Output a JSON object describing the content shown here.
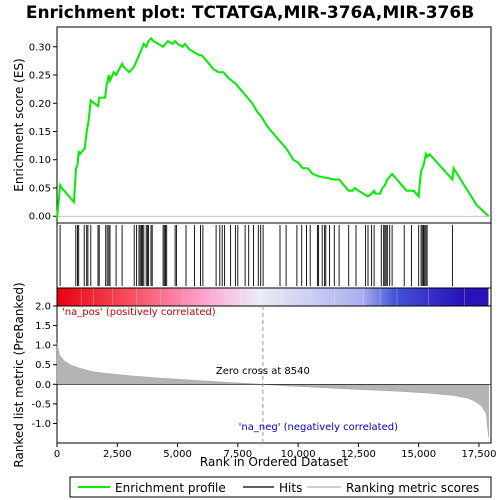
{
  "chart_data": {
    "type": "line",
    "title": "Enrichment plot: TCTATGA,MIR-376A,MIR-376B",
    "xlabel": "Rank in Ordered Dataset",
    "xlim": [
      0,
      18000
    ],
    "x_ticks": [
      "0",
      "2,500",
      "5,000",
      "7,500",
      "10,000",
      "12,500",
      "15,000",
      "17,500"
    ],
    "x_tick_values": [
      0,
      2500,
      5000,
      7500,
      10000,
      12500,
      15000,
      17500
    ],
    "panels": {
      "enrichment": {
        "ylabel": "Enrichment score (ES)",
        "ylim": [
          -0.012,
          0.335
        ],
        "y_ticks": [
          "0.00",
          "0.05",
          "0.10",
          "0.15",
          "0.20",
          "0.25",
          "0.30"
        ],
        "y_tick_values": [
          0.0,
          0.05,
          0.1,
          0.15,
          0.2,
          0.25,
          0.3
        ]
      },
      "metric": {
        "ylabel": "Ranked list metric (PreRanked)",
        "ylim": [
          -1.5,
          2.0
        ],
        "y_ticks": [
          "2.0",
          "1.5",
          "1.0",
          "0.5",
          "0.0",
          "-0.5",
          "-1.0"
        ],
        "y_tick_values": [
          2.0,
          1.5,
          1.0,
          0.5,
          0.0,
          -0.5,
          -1.0
        ]
      }
    },
    "series": [
      {
        "name": "Enrichment profile",
        "color": "#00ee00",
        "x": [
          0,
          130,
          200,
          700,
          790,
          850,
          900,
          950,
          1150,
          1250,
          1300,
          1400,
          1700,
          1750,
          2000,
          2050,
          2150,
          2200,
          2350,
          2450,
          2700,
          2750,
          3000,
          3200,
          3300,
          3400,
          3500,
          3600,
          3700,
          3800,
          3900,
          4000,
          4200,
          4400,
          4500,
          4600,
          4800,
          4900,
          5000,
          5200,
          5300,
          5500,
          5700,
          5900,
          6000,
          6300,
          6500,
          6700,
          6900,
          7100,
          7400,
          7500,
          7700,
          7900,
          8100,
          8300,
          8500,
          8700,
          8900,
          9200,
          9500,
          9800,
          10000,
          10200,
          10400,
          10600,
          10900,
          11000,
          11100,
          11200,
          11350,
          11500,
          11700,
          11900,
          12100,
          12250,
          12350,
          12500,
          12700,
          12900,
          13050,
          13150,
          13200,
          13400,
          13500,
          13600,
          13700,
          13800,
          13900,
          14100,
          14300,
          14500,
          14700,
          14800,
          15000,
          15050,
          15100,
          15200,
          15250,
          15300,
          15350,
          15450,
          16400,
          16450,
          17400,
          17900
        ],
        "y": [
          -0.005,
          0.055,
          0.05,
          0.025,
          0.085,
          0.09,
          0.115,
          0.11,
          0.12,
          0.155,
          0.165,
          0.205,
          0.195,
          0.21,
          0.21,
          0.23,
          0.25,
          0.24,
          0.255,
          0.25,
          0.27,
          0.265,
          0.255,
          0.265,
          0.275,
          0.285,
          0.295,
          0.305,
          0.3,
          0.31,
          0.315,
          0.31,
          0.305,
          0.3,
          0.305,
          0.31,
          0.305,
          0.31,
          0.305,
          0.3,
          0.305,
          0.295,
          0.29,
          0.285,
          0.285,
          0.27,
          0.26,
          0.255,
          0.255,
          0.245,
          0.235,
          0.23,
          0.22,
          0.21,
          0.2,
          0.185,
          0.175,
          0.16,
          0.15,
          0.135,
          0.12,
          0.1,
          0.095,
          0.085,
          0.085,
          0.075,
          0.07,
          0.07,
          0.068,
          0.068,
          0.066,
          0.065,
          0.065,
          0.055,
          0.045,
          0.045,
          0.05,
          0.045,
          0.04,
          0.035,
          0.04,
          0.045,
          0.04,
          0.04,
          0.05,
          0.055,
          0.065,
          0.07,
          0.075,
          0.065,
          0.055,
          0.045,
          0.045,
          0.045,
          0.035,
          0.06,
          0.08,
          0.09,
          0.1,
          0.11,
          0.105,
          0.11,
          0.065,
          0.085,
          0.02,
          0.0
        ]
      },
      {
        "name": "Hits",
        "color": "#000000",
        "x": [
          130,
          780,
          850,
          900,
          1130,
          1230,
          1280,
          1400,
          1700,
          1750,
          2020,
          2080,
          2150,
          2200,
          2450,
          2700,
          3200,
          3300,
          3400,
          3450,
          3500,
          3550,
          3600,
          3700,
          3750,
          3800,
          3900,
          3950,
          4400,
          4450,
          4500,
          4550,
          4900,
          4950,
          5350,
          5700,
          5950,
          6050,
          6600,
          6750,
          6850,
          6950,
          7200,
          7400,
          7500,
          7800,
          7950,
          8150,
          8350,
          8450,
          8550,
          9250,
          9500,
          9950,
          10150,
          10350,
          10500,
          10800,
          10850,
          11000,
          11100,
          11150,
          11300,
          11500,
          11700,
          12100,
          12400,
          12800,
          12900,
          13050,
          13150,
          13450,
          13550,
          13600,
          13650,
          13700,
          13800,
          13900,
          14400,
          14700,
          15000,
          15100,
          15150,
          15200,
          15250,
          15300,
          15350,
          16400
        ]
      },
      {
        "name": "Ranking metric scores",
        "color": "#b4b4b4",
        "x": [
          0,
          100,
          300,
          600,
          1000,
          1500,
          2000,
          3000,
          4000,
          5000,
          6000,
          7000,
          8540,
          9500,
          10500,
          11500,
          12500,
          13500,
          14500,
          15500,
          16500,
          17000,
          17300,
          17600,
          17800,
          17900
        ],
        "y": [
          1.05,
          0.75,
          0.6,
          0.48,
          0.4,
          0.32,
          0.28,
          0.22,
          0.17,
          0.13,
          0.09,
          0.05,
          0.0,
          -0.04,
          -0.07,
          -0.1,
          -0.13,
          -0.16,
          -0.19,
          -0.23,
          -0.29,
          -0.35,
          -0.42,
          -0.55,
          -0.75,
          -1.35
        ]
      }
    ],
    "heatmap_bar": {
      "stops": [
        {
          "x": 0,
          "color": "#e8000f"
        },
        {
          "x": 3000,
          "color": "#f54e5e"
        },
        {
          "x": 6400,
          "color": "#ffaad6"
        },
        {
          "x": 8400,
          "color": "#ececf8"
        },
        {
          "x": 12700,
          "color": "#aab0ee"
        },
        {
          "x": 14100,
          "color": "#4553d8"
        },
        {
          "x": 16900,
          "color": "#2812b8"
        },
        {
          "x": 17900,
          "color": "#2812b8"
        }
      ],
      "segments_x": [
        0,
        1000,
        1500,
        2300,
        3300,
        4300,
        5200,
        6400,
        7000,
        7600,
        8400,
        9300,
        10500,
        11500,
        12700,
        13400,
        14100,
        15400,
        16900,
        17900
      ]
    },
    "annotations": {
      "pos_label": "'na_pos' (positively correlated)",
      "neg_label": "'na_neg' (negatively correlated)",
      "zero_cross": "Zero cross at 8540",
      "zero_cross_x": 8540,
      "pos_color": "#cc0000",
      "neg_color": "#0000cc"
    },
    "legend": {
      "position": "bottom",
      "items": [
        "Enrichment profile",
        "Hits",
        "Ranking metric scores"
      ]
    }
  }
}
